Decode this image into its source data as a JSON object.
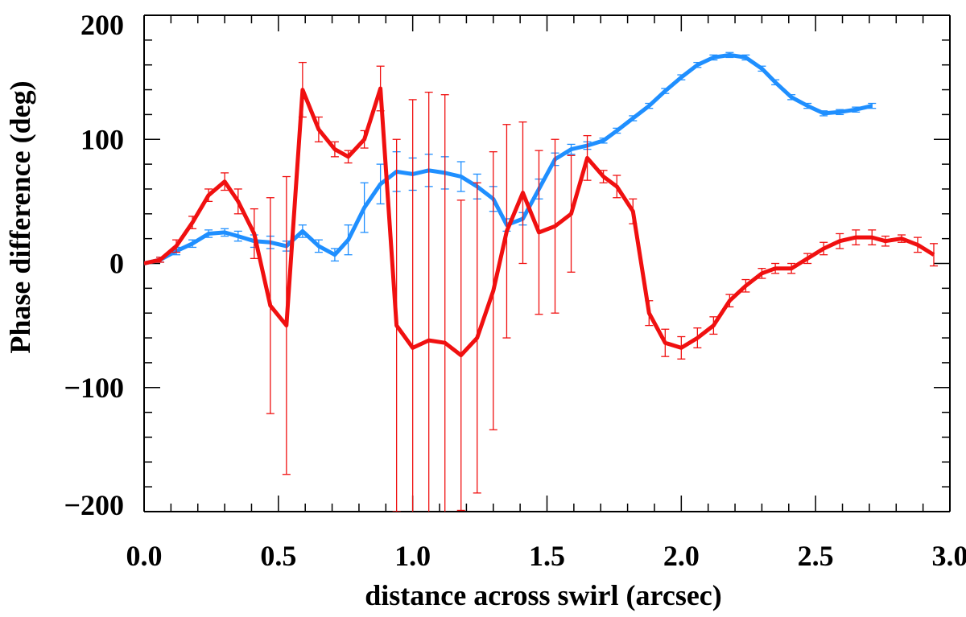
{
  "chart_data": {
    "type": "line",
    "xlabel": "distance across swirl (arcsec)",
    "ylabel": "Phase difference (deg)",
    "xlim": [
      0.0,
      3.0
    ],
    "ylim": [
      -200,
      200
    ],
    "xticks": [
      "0.0",
      "0.5",
      "1.0",
      "1.5",
      "2.0",
      "2.5",
      "3.0"
    ],
    "xtick_values": [
      0.0,
      0.5,
      1.0,
      1.5,
      2.0,
      2.5,
      3.0
    ],
    "yticks": [
      "200",
      "100",
      "0",
      "−100",
      "−200"
    ],
    "ytick_values": [
      200,
      100,
      0,
      -100,
      -200
    ],
    "grid": false,
    "legend": "none",
    "series": [
      {
        "color": "#1f8fff",
        "x": [
          0.0,
          0.06,
          0.12,
          0.18,
          0.24,
          0.3,
          0.35,
          0.41,
          0.47,
          0.53,
          0.59,
          0.65,
          0.71,
          0.76,
          0.82,
          0.88,
          0.94,
          1.0,
          1.06,
          1.12,
          1.18,
          1.24,
          1.3,
          1.35,
          1.41,
          1.47,
          1.53,
          1.59,
          1.65,
          1.71,
          1.76,
          1.82,
          1.88,
          1.94,
          2.0,
          2.06,
          2.12,
          2.18,
          2.24,
          2.3,
          2.35,
          2.41,
          2.47,
          2.53,
          2.59,
          2.65,
          2.71
        ],
        "y": [
          0,
          3,
          10,
          16,
          24,
          25,
          22,
          18,
          17,
          14,
          26,
          14,
          7,
          19,
          45,
          64,
          74,
          72,
          75,
          73,
          70,
          62,
          52,
          31,
          36,
          60,
          84,
          92,
          95,
          99,
          107,
          117,
          127,
          139,
          150,
          160,
          166,
          168,
          166,
          157,
          146,
          134,
          127,
          121,
          122,
          124,
          127
        ],
        "err": [
          0,
          2,
          3,
          3,
          3,
          3,
          4,
          5,
          5,
          4,
          5,
          5,
          5,
          12,
          20,
          16,
          16,
          13,
          13,
          13,
          12,
          10,
          10,
          5,
          5,
          8,
          5,
          4,
          3,
          2,
          2,
          2,
          2,
          2,
          2,
          2,
          2,
          2,
          2,
          2,
          2,
          2,
          2,
          2,
          2,
          2,
          2
        ]
      },
      {
        "color": "#f01010",
        "x": [
          0.0,
          0.06,
          0.12,
          0.18,
          0.24,
          0.3,
          0.35,
          0.41,
          0.47,
          0.53,
          0.59,
          0.65,
          0.71,
          0.76,
          0.82,
          0.88,
          0.94,
          1.0,
          1.06,
          1.12,
          1.18,
          1.24,
          1.3,
          1.35,
          1.41,
          1.47,
          1.53,
          1.59,
          1.65,
          1.71,
          1.76,
          1.82,
          1.88,
          1.94,
          2.0,
          2.06,
          2.12,
          2.18,
          2.24,
          2.3,
          2.35,
          2.41,
          2.47,
          2.53,
          2.59,
          2.65,
          2.71,
          2.76,
          2.82,
          2.88,
          2.94
        ],
        "y": [
          0,
          3,
          14,
          33,
          55,
          66,
          50,
          24,
          -34,
          -50,
          140,
          108,
          92,
          86,
          100,
          141,
          -50,
          -68,
          -62,
          -64,
          -74,
          -60,
          -22,
          26,
          57,
          25,
          30,
          40,
          85,
          70,
          62,
          42,
          -40,
          -64,
          -68,
          -60,
          -50,
          -30,
          -18,
          -8,
          -4,
          -4,
          4,
          12,
          18,
          21,
          21,
          18,
          20,
          15,
          7
        ],
        "err": [
          0,
          2,
          5,
          5,
          5,
          7,
          10,
          20,
          87,
          120,
          22,
          10,
          6,
          5,
          7,
          18,
          150,
          200,
          200,
          200,
          125,
          125,
          112,
          86,
          57,
          66,
          70,
          47,
          18,
          5,
          9,
          10,
          10,
          11,
          9,
          8,
          7,
          5,
          5,
          4,
          4,
          4,
          4,
          5,
          6,
          6,
          6,
          4,
          3,
          6,
          9
        ]
      }
    ]
  }
}
